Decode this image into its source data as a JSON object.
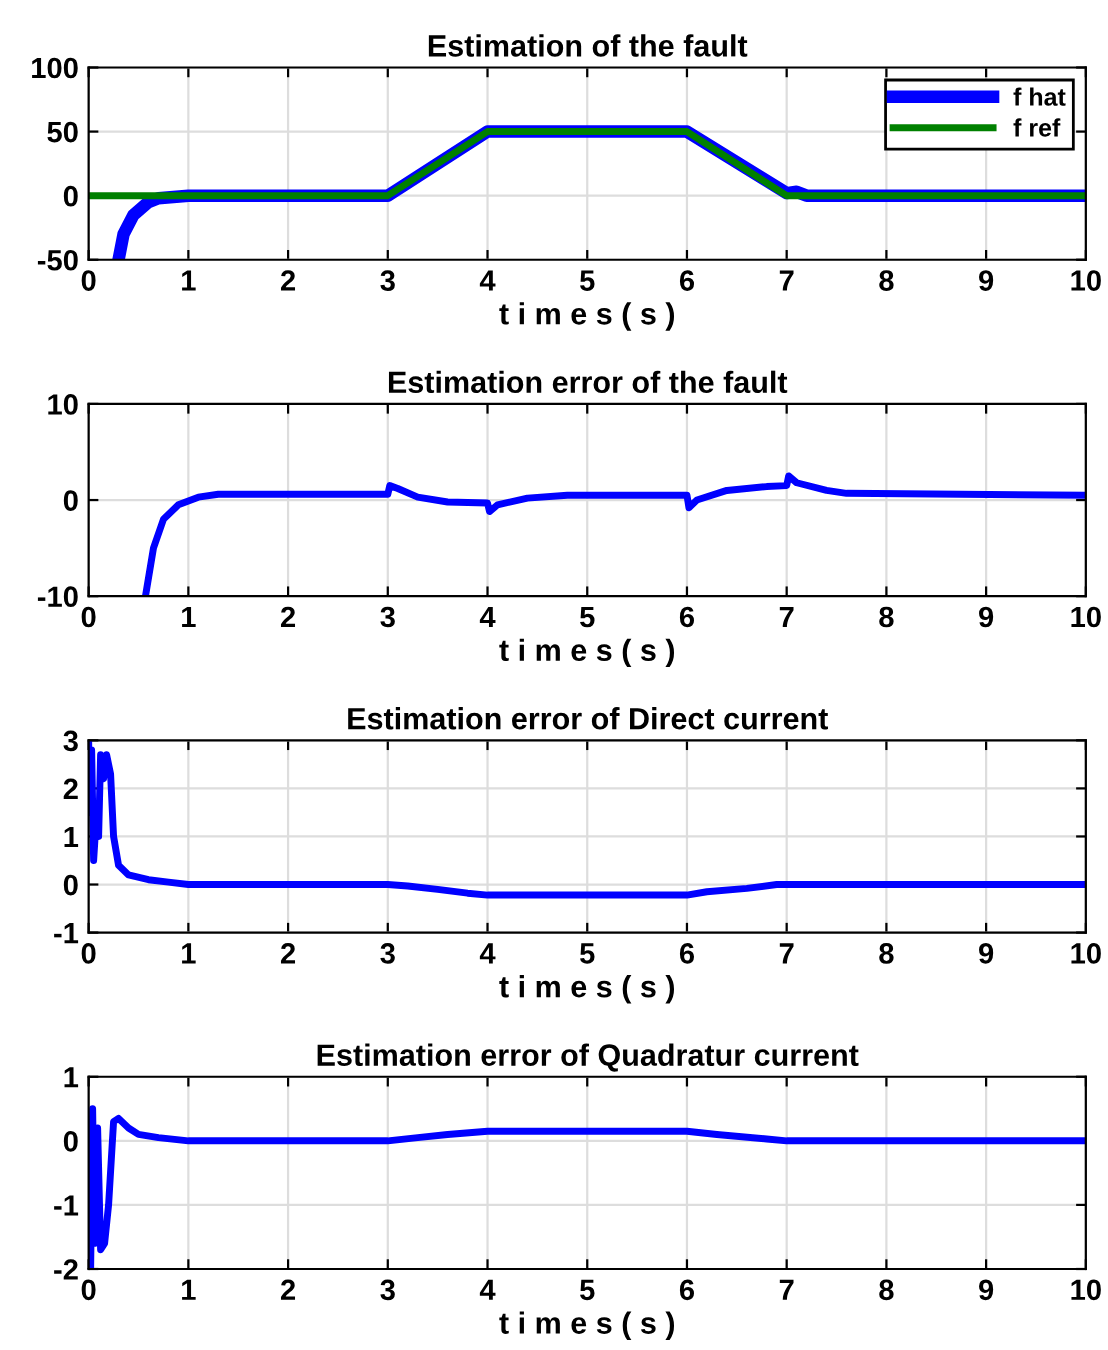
{
  "chart_data": [
    {
      "type": "line",
      "title": "Estimation of the fault",
      "xlabel": "t i m e s ( s )",
      "xlim": [
        0,
        10
      ],
      "xticks": [
        0,
        1,
        2,
        3,
        4,
        5,
        6,
        7,
        8,
        9,
        10
      ],
      "ylim": [
        -50,
        100
      ],
      "yticks": [
        -50,
        0,
        50,
        100
      ],
      "grid": true,
      "legend": "top right",
      "series": [
        {
          "name": "f hat",
          "color": "#0000ff",
          "x": [
            0.3,
            0.35,
            0.45,
            0.6,
            0.7,
            1.0,
            3.0,
            4.0,
            6.0,
            7.0,
            7.1,
            7.2,
            10
          ],
          "values": [
            -50,
            -30,
            -15,
            -5,
            -2,
            0,
            0,
            50,
            50,
            2,
            3,
            0,
            0
          ]
        },
        {
          "name": "f ref",
          "color": "#008000",
          "x": [
            0,
            3,
            4,
            6,
            7,
            10
          ],
          "values": [
            0,
            0,
            50,
            50,
            0,
            0
          ]
        }
      ]
    },
    {
      "type": "line",
      "title": "Estimation error of the fault",
      "xlabel": "t i m e s ( s )",
      "xlim": [
        0,
        10
      ],
      "xticks": [
        0,
        1,
        2,
        3,
        4,
        5,
        6,
        7,
        8,
        9,
        10
      ],
      "ylim": [
        -10,
        10
      ],
      "yticks": [
        -10,
        0,
        10
      ],
      "grid": true,
      "series": [
        {
          "color": "#0000ff",
          "x": [
            0.57,
            0.65,
            0.75,
            0.9,
            1.1,
            1.3,
            3.0,
            3.02,
            3.1,
            3.3,
            3.6,
            4.0,
            4.02,
            4.1,
            4.4,
            4.8,
            6.0,
            6.02,
            6.1,
            6.4,
            6.8,
            7.0,
            7.02,
            7.1,
            7.4,
            7.6,
            10
          ],
          "values": [
            -10,
            -5,
            -2,
            -0.5,
            0.3,
            0.6,
            0.6,
            1.5,
            1.2,
            0.3,
            -0.2,
            -0.3,
            -1.2,
            -0.5,
            0.2,
            0.5,
            0.5,
            -0.8,
            0,
            1,
            1.4,
            1.5,
            2.5,
            1.8,
            1,
            0.7,
            0.5
          ]
        }
      ]
    },
    {
      "type": "line",
      "title": "Estimation error of Direct current",
      "xlabel": "t i m e s ( s )",
      "xlim": [
        0,
        10
      ],
      "xticks": [
        0,
        1,
        2,
        3,
        4,
        5,
        6,
        7,
        8,
        9,
        10
      ],
      "ylim": [
        -1,
        3
      ],
      "yticks": [
        -1,
        0,
        1,
        2,
        3
      ],
      "grid": true,
      "series": [
        {
          "color": "#0000ff",
          "x": [
            0,
            0.01,
            0.03,
            0.05,
            0.08,
            0.1,
            0.12,
            0.15,
            0.18,
            0.22,
            0.25,
            0.3,
            0.4,
            0.6,
            0.8,
            1,
            3,
            3.2,
            3.5,
            3.8,
            4,
            6,
            6.2,
            6.6,
            6.9,
            10
          ],
          "values": [
            3,
            1.5,
            2.8,
            0.5,
            1.5,
            1,
            2.7,
            2.2,
            2.7,
            2.3,
            1,
            0.4,
            0.2,
            0.1,
            0.05,
            0,
            0,
            -0.03,
            -0.1,
            -0.18,
            -0.22,
            -0.22,
            -0.15,
            -0.08,
            0,
            0
          ]
        }
      ]
    },
    {
      "type": "line",
      "title": "Estimation error of Quadratur current",
      "xlabel": "t i m e s ( s )",
      "xlim": [
        0,
        10
      ],
      "xticks": [
        0,
        1,
        2,
        3,
        4,
        5,
        6,
        7,
        8,
        9,
        10
      ],
      "ylim": [
        -2,
        1
      ],
      "yticks": [
        -2,
        -1,
        0,
        1
      ],
      "grid": true,
      "series": [
        {
          "color": "#0000ff",
          "x": [
            0,
            0.02,
            0.04,
            0.06,
            0.09,
            0.12,
            0.16,
            0.2,
            0.25,
            0.3,
            0.4,
            0.5,
            0.7,
            1,
            3,
            3.3,
            3.6,
            4,
            6,
            6.3,
            6.8,
            7,
            10
          ],
          "values": [
            -0.5,
            -2,
            0.5,
            -1.6,
            0.2,
            -1.7,
            -1.6,
            -1,
            0.3,
            0.35,
            0.2,
            0.1,
            0.05,
            0,
            0,
            0.05,
            0.1,
            0.15,
            0.15,
            0.1,
            0.03,
            0,
            0
          ]
        }
      ]
    }
  ]
}
